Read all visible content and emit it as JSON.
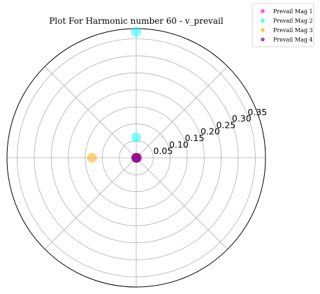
{
  "chart_data": {
    "type": "scatter",
    "projection": "polar",
    "title": "Plot For Harmonic number 60 - v_prevail",
    "rlim": [
      0,
      0.38
    ],
    "r_ticks": [
      0.05,
      0.1,
      0.15,
      0.2,
      0.25,
      0.3,
      0.35
    ],
    "r_tick_labels": [
      "0.05",
      "0.10",
      "0.15",
      "0.20",
      "0.25",
      "0.30",
      "0.35"
    ],
    "theta_gridlines_deg": [
      0,
      45,
      90,
      135,
      180,
      225,
      270,
      315
    ],
    "grid": true,
    "legend_position": "top-right",
    "series": [
      {
        "name": "Prevail Mag 1",
        "color": "#ff00ff",
        "points": [
          {
            "theta_deg": 0,
            "r": 0.003
          }
        ]
      },
      {
        "name": "Prevail Mag 2",
        "color": "#00ffff",
        "points": [
          {
            "theta_deg": 90,
            "r": 0.37
          },
          {
            "theta_deg": 90,
            "r": 0.06
          }
        ]
      },
      {
        "name": "Prevail Mag 3",
        "color": "#ffa500",
        "points": [
          {
            "theta_deg": 180,
            "r": 0.13
          }
        ]
      },
      {
        "name": "Prevail Mag 4",
        "color": "#800080",
        "points": [
          {
            "theta_deg": 0,
            "r": 0.0
          }
        ]
      }
    ]
  }
}
